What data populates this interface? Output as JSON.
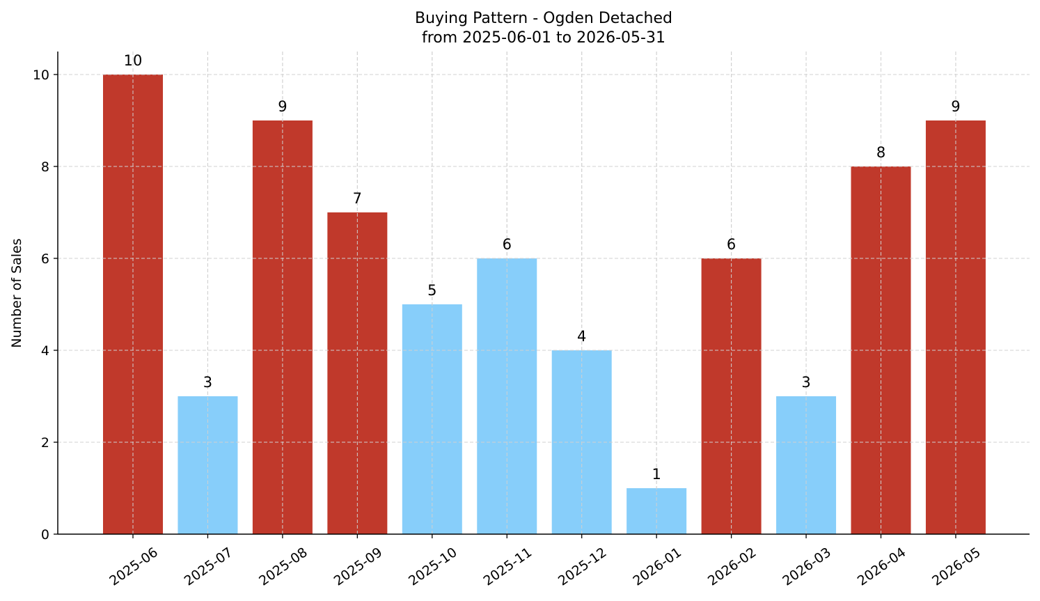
{
  "chart_data": {
    "type": "bar",
    "title": "Buying Pattern - Ogden Detached",
    "subtitle": "from 2025-06-01 to 2026-05-31",
    "xlabel": "",
    "ylabel": "Number of Sales",
    "ylim": [
      0,
      10.5
    ],
    "yticks": [
      0,
      2,
      4,
      6,
      8,
      10
    ],
    "grid": true,
    "categories": [
      "2025-06",
      "2025-07",
      "2025-08",
      "2025-09",
      "2025-10",
      "2025-11",
      "2025-12",
      "2026-01",
      "2026-02",
      "2026-03",
      "2026-04",
      "2026-05"
    ],
    "values": [
      10,
      3,
      9,
      7,
      5,
      6,
      4,
      1,
      6,
      3,
      8,
      9
    ],
    "bar_colors": [
      "#c0392b",
      "#87cefa",
      "#c0392b",
      "#c0392b",
      "#87cefa",
      "#87cefa",
      "#87cefa",
      "#87cefa",
      "#c0392b",
      "#87cefa",
      "#c0392b",
      "#c0392b"
    ]
  }
}
